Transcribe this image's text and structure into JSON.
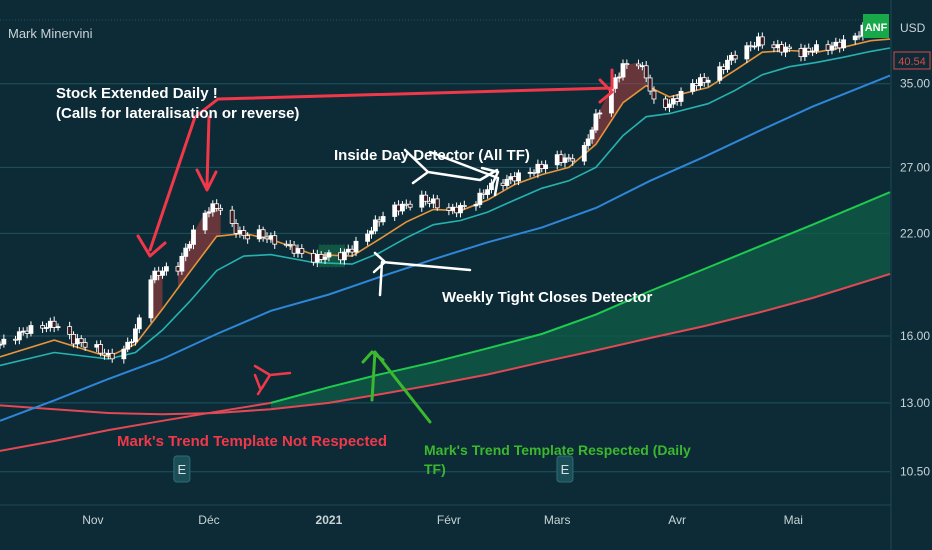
{
  "header": {
    "indicator_name": "Mark Minervini",
    "currency": "USD",
    "symbol_badge": "ANF",
    "last_price_label": "40.54"
  },
  "colors": {
    "background": "#0d2b36",
    "grid": "#1d5560",
    "axis_text": "#c8d4d8",
    "up_candle": "#ffffff",
    "down_candle": "#3b1a1f",
    "ema_fast": "#e8943a",
    "ema_mid": "#26b3b0",
    "sma_150": "#2f86d8",
    "sma_200_respected": "#1ecb4f",
    "sma_200_not_respected": "#e34855",
    "fill_respected": "#0f5f48",
    "fill_extended": "#b04040",
    "annot_red": "#f0384a",
    "annot_white": "#ffffff",
    "annot_green": "#3bb82e",
    "badge_green": "#17a84a",
    "last_price_red": "#d84a4a",
    "earnings": "#1c4e58"
  },
  "chart_data": {
    "type": "line",
    "title": "",
    "y_axis": {
      "scale": "log",
      "unit": "USD",
      "ticks": [
        "10.50",
        "13.00",
        "16.00",
        "22.00",
        "27.00",
        "35.00"
      ],
      "ylim": [
        9.5,
        44
      ]
    },
    "x_axis": {
      "ticks": [
        "Nov",
        "Déc",
        "2021",
        "Févr",
        "Mars",
        "Avr",
        "Mai"
      ],
      "xlim": [
        "2020-10-08",
        "2021-05-26"
      ]
    },
    "grid": true,
    "price_series": {
      "name": "ANF daily close",
      "points": [
        [
          "2020-10-08",
          15.6
        ],
        [
          "2020-10-15",
          16.3
        ],
        [
          "2020-10-22",
          16.6
        ],
        [
          "2020-10-27",
          15.8
        ],
        [
          "2020-11-02",
          15.4
        ],
        [
          "2020-11-05",
          15.0
        ],
        [
          "2020-11-09",
          15.3
        ],
        [
          "2020-11-12",
          16.2
        ],
        [
          "2020-11-16",
          19.2
        ],
        [
          "2020-11-19",
          19.6
        ],
        [
          "2020-11-23",
          19.8
        ],
        [
          "2020-11-26",
          21.5
        ],
        [
          "2020-11-30",
          23.5
        ],
        [
          "2020-12-03",
          24.0
        ],
        [
          "2020-12-07",
          22.5
        ],
        [
          "2020-12-10",
          21.8
        ],
        [
          "2020-12-14",
          22.0
        ],
        [
          "2020-12-17",
          21.6
        ],
        [
          "2020-12-21",
          21.2
        ],
        [
          "2020-12-24",
          20.8
        ],
        [
          "2020-12-28",
          20.3
        ],
        [
          "2020-12-31",
          20.5
        ],
        [
          "2021-01-04",
          20.5
        ],
        [
          "2021-01-07",
          21.0
        ],
        [
          "2021-01-11",
          22.0
        ],
        [
          "2021-01-14",
          23.0
        ],
        [
          "2021-01-18",
          23.8
        ],
        [
          "2021-01-21",
          24.0
        ],
        [
          "2021-01-25",
          24.5
        ],
        [
          "2021-01-28",
          24.2
        ],
        [
          "2021-02-01",
          23.6
        ],
        [
          "2021-02-04",
          23.8
        ],
        [
          "2021-02-08",
          24.3
        ],
        [
          "2021-02-11",
          25.3
        ],
        [
          "2021-02-15",
          25.8
        ],
        [
          "2021-02-18",
          26.2
        ],
        [
          "2021-02-22",
          26.6
        ],
        [
          "2021-02-25",
          27.1
        ],
        [
          "2021-03-01",
          27.8
        ],
        [
          "2021-03-04",
          27.6
        ],
        [
          "2021-03-08",
          28.6
        ],
        [
          "2021-03-11",
          31.5
        ],
        [
          "2021-03-15",
          34.5
        ],
        [
          "2021-03-18",
          37.0
        ],
        [
          "2021-03-22",
          37.4
        ],
        [
          "2021-03-24",
          35.8
        ],
        [
          "2021-03-26",
          33.0
        ],
        [
          "2021-03-30",
          32.8
        ],
        [
          "2021-04-05",
          35.0
        ],
        [
          "2021-04-09",
          35.5
        ],
        [
          "2021-04-12",
          36.5
        ],
        [
          "2021-04-15",
          38.0
        ],
        [
          "2021-04-19",
          39.0
        ],
        [
          "2021-04-22",
          40.0
        ],
        [
          "2021-04-26",
          39.2
        ],
        [
          "2021-04-29",
          39.0
        ],
        [
          "2021-05-03",
          38.5
        ],
        [
          "2021-05-06",
          39.0
        ],
        [
          "2021-05-10",
          39.2
        ],
        [
          "2021-05-13",
          39.6
        ],
        [
          "2021-05-17",
          40.5
        ],
        [
          "2021-05-20",
          42.0
        ],
        [
          "2021-05-24",
          40.54
        ]
      ]
    },
    "extended_days": [
      [
        "2020-11-16",
        "2020-11-19"
      ],
      [
        "2020-11-23",
        "2020-12-04"
      ],
      [
        "2021-03-10",
        "2021-03-24"
      ]
    ],
    "moving_averages": [
      {
        "key": "ema_fast",
        "points": [
          [
            "2020-10-08",
            15.0
          ],
          [
            "2020-10-22",
            15.8
          ],
          [
            "2020-11-05",
            15.0
          ],
          [
            "2020-11-12",
            15.6
          ],
          [
            "2020-11-19",
            17.4
          ],
          [
            "2020-11-26",
            19.5
          ],
          [
            "2020-12-03",
            21.8
          ],
          [
            "2020-12-10",
            22.0
          ],
          [
            "2020-12-17",
            21.6
          ],
          [
            "2020-12-28",
            20.6
          ],
          [
            "2021-01-07",
            20.5
          ],
          [
            "2021-01-14",
            21.6
          ],
          [
            "2021-01-21",
            22.8
          ],
          [
            "2021-01-28",
            23.7
          ],
          [
            "2021-02-04",
            23.6
          ],
          [
            "2021-02-11",
            24.4
          ],
          [
            "2021-02-18",
            25.6
          ],
          [
            "2021-02-25",
            26.4
          ],
          [
            "2021-03-04",
            27.0
          ],
          [
            "2021-03-11",
            29.0
          ],
          [
            "2021-03-18",
            33.0
          ],
          [
            "2021-03-24",
            34.8
          ],
          [
            "2021-03-30",
            33.6
          ],
          [
            "2021-04-09",
            34.6
          ],
          [
            "2021-04-16",
            36.5
          ],
          [
            "2021-04-23",
            38.6
          ],
          [
            "2021-04-30",
            38.8
          ],
          [
            "2021-05-07",
            38.6
          ],
          [
            "2021-05-14",
            39.2
          ],
          [
            "2021-05-21",
            40.0
          ],
          [
            "2021-05-26",
            40.2
          ]
        ]
      },
      {
        "key": "ema_mid",
        "points": [
          [
            "2020-10-08",
            14.6
          ],
          [
            "2020-10-22",
            15.2
          ],
          [
            "2020-11-05",
            14.9
          ],
          [
            "2020-11-12",
            15.2
          ],
          [
            "2020-11-19",
            16.3
          ],
          [
            "2020-11-26",
            17.8
          ],
          [
            "2020-12-03",
            19.6
          ],
          [
            "2020-12-10",
            20.5
          ],
          [
            "2020-12-17",
            20.6
          ],
          [
            "2020-12-28",
            20.1
          ],
          [
            "2021-01-07",
            20.0
          ],
          [
            "2021-01-14",
            20.7
          ],
          [
            "2021-01-21",
            21.7
          ],
          [
            "2021-01-28",
            22.6
          ],
          [
            "2021-02-04",
            22.9
          ],
          [
            "2021-02-11",
            23.5
          ],
          [
            "2021-02-18",
            24.4
          ],
          [
            "2021-02-25",
            25.3
          ],
          [
            "2021-03-04",
            25.9
          ],
          [
            "2021-03-11",
            27.0
          ],
          [
            "2021-03-18",
            29.8
          ],
          [
            "2021-03-24",
            31.6
          ],
          [
            "2021-03-30",
            31.9
          ],
          [
            "2021-04-09",
            32.9
          ],
          [
            "2021-04-16",
            34.3
          ],
          [
            "2021-04-23",
            36.0
          ],
          [
            "2021-04-30",
            36.9
          ],
          [
            "2021-05-07",
            37.4
          ],
          [
            "2021-05-14",
            38.0
          ],
          [
            "2021-05-21",
            38.7
          ],
          [
            "2021-05-26",
            39.1
          ]
        ]
      },
      {
        "key": "sma_150",
        "points": [
          [
            "2020-10-08",
            12.3
          ],
          [
            "2020-10-22",
            13.1
          ],
          [
            "2020-11-05",
            14.0
          ],
          [
            "2020-11-19",
            14.9
          ],
          [
            "2020-12-03",
            16.1
          ],
          [
            "2020-12-17",
            17.3
          ],
          [
            "2021-01-01",
            18.2
          ],
          [
            "2021-01-14",
            19.2
          ],
          [
            "2021-01-28",
            20.3
          ],
          [
            "2021-02-11",
            21.4
          ],
          [
            "2021-02-25",
            22.4
          ],
          [
            "2021-03-11",
            23.8
          ],
          [
            "2021-03-25",
            25.9
          ],
          [
            "2021-04-08",
            27.9
          ],
          [
            "2021-04-22",
            30.2
          ],
          [
            "2021-05-06",
            32.6
          ],
          [
            "2021-05-26",
            35.9
          ]
        ]
      },
      {
        "key": "sma_200",
        "segments": [
          {
            "status": "not_respected",
            "points": [
              [
                "2020-10-08",
                11.2
              ],
              [
                "2020-10-22",
                11.55
              ],
              [
                "2020-11-05",
                11.95
              ],
              [
                "2020-11-19",
                12.3
              ],
              [
                "2020-12-03",
                12.65
              ],
              [
                "2020-12-17",
                13.0
              ]
            ]
          },
          {
            "status": "respected",
            "points": [
              [
                "2020-12-17",
                13.0
              ],
              [
                "2021-01-01",
                13.65
              ],
              [
                "2021-01-14",
                14.2
              ],
              [
                "2021-01-28",
                14.75
              ],
              [
                "2021-02-11",
                15.4
              ],
              [
                "2021-02-25",
                16.1
              ],
              [
                "2021-03-11",
                17.1
              ],
              [
                "2021-03-25",
                18.4
              ],
              [
                "2021-04-08",
                19.7
              ],
              [
                "2021-04-22",
                21.1
              ],
              [
                "2021-05-06",
                22.6
              ],
              [
                "2021-05-26",
                25.0
              ]
            ]
          }
        ]
      },
      {
        "key": "sma_lower",
        "points": [
          [
            "2020-10-08",
            12.9
          ],
          [
            "2020-10-22",
            12.75
          ],
          [
            "2020-11-05",
            12.6
          ],
          [
            "2020-11-19",
            12.55
          ],
          [
            "2020-12-03",
            12.6
          ],
          [
            "2020-12-17",
            12.75
          ],
          [
            "2021-01-01",
            13.0
          ],
          [
            "2021-01-14",
            13.35
          ],
          [
            "2021-01-28",
            13.75
          ],
          [
            "2021-02-11",
            14.2
          ],
          [
            "2021-02-25",
            14.75
          ],
          [
            "2021-03-11",
            15.3
          ],
          [
            "2021-03-25",
            15.9
          ],
          [
            "2021-04-08",
            16.5
          ],
          [
            "2021-04-22",
            17.2
          ],
          [
            "2021-05-06",
            18.0
          ],
          [
            "2021-05-26",
            19.4
          ]
        ]
      }
    ],
    "events": [
      {
        "type": "earnings",
        "label": "E",
        "date": "2020-11-24"
      },
      {
        "type": "earnings",
        "label": "E",
        "date": "2021-03-03"
      }
    ],
    "annotations": [
      {
        "id": "stock-extended",
        "color_key": "annot_red",
        "lines": [
          "Stock Extended Daily !",
          "(Calls for lateralisation or reverse)"
        ]
      },
      {
        "id": "inside-day",
        "color_key": "annot_white",
        "lines": [
          "Inside Day Detector (All TF)"
        ]
      },
      {
        "id": "weekly-tight",
        "color_key": "annot_white",
        "lines": [
          "Weekly Tight Closes Detector"
        ]
      },
      {
        "id": "tt-not-respected",
        "color_key": "annot_red",
        "lines": [
          "Mark's Trend Template Not Respected"
        ]
      },
      {
        "id": "tt-respected",
        "color_key": "annot_green",
        "lines": [
          "Mark's Trend Template Respected (Daily",
          "TF)"
        ]
      }
    ]
  }
}
